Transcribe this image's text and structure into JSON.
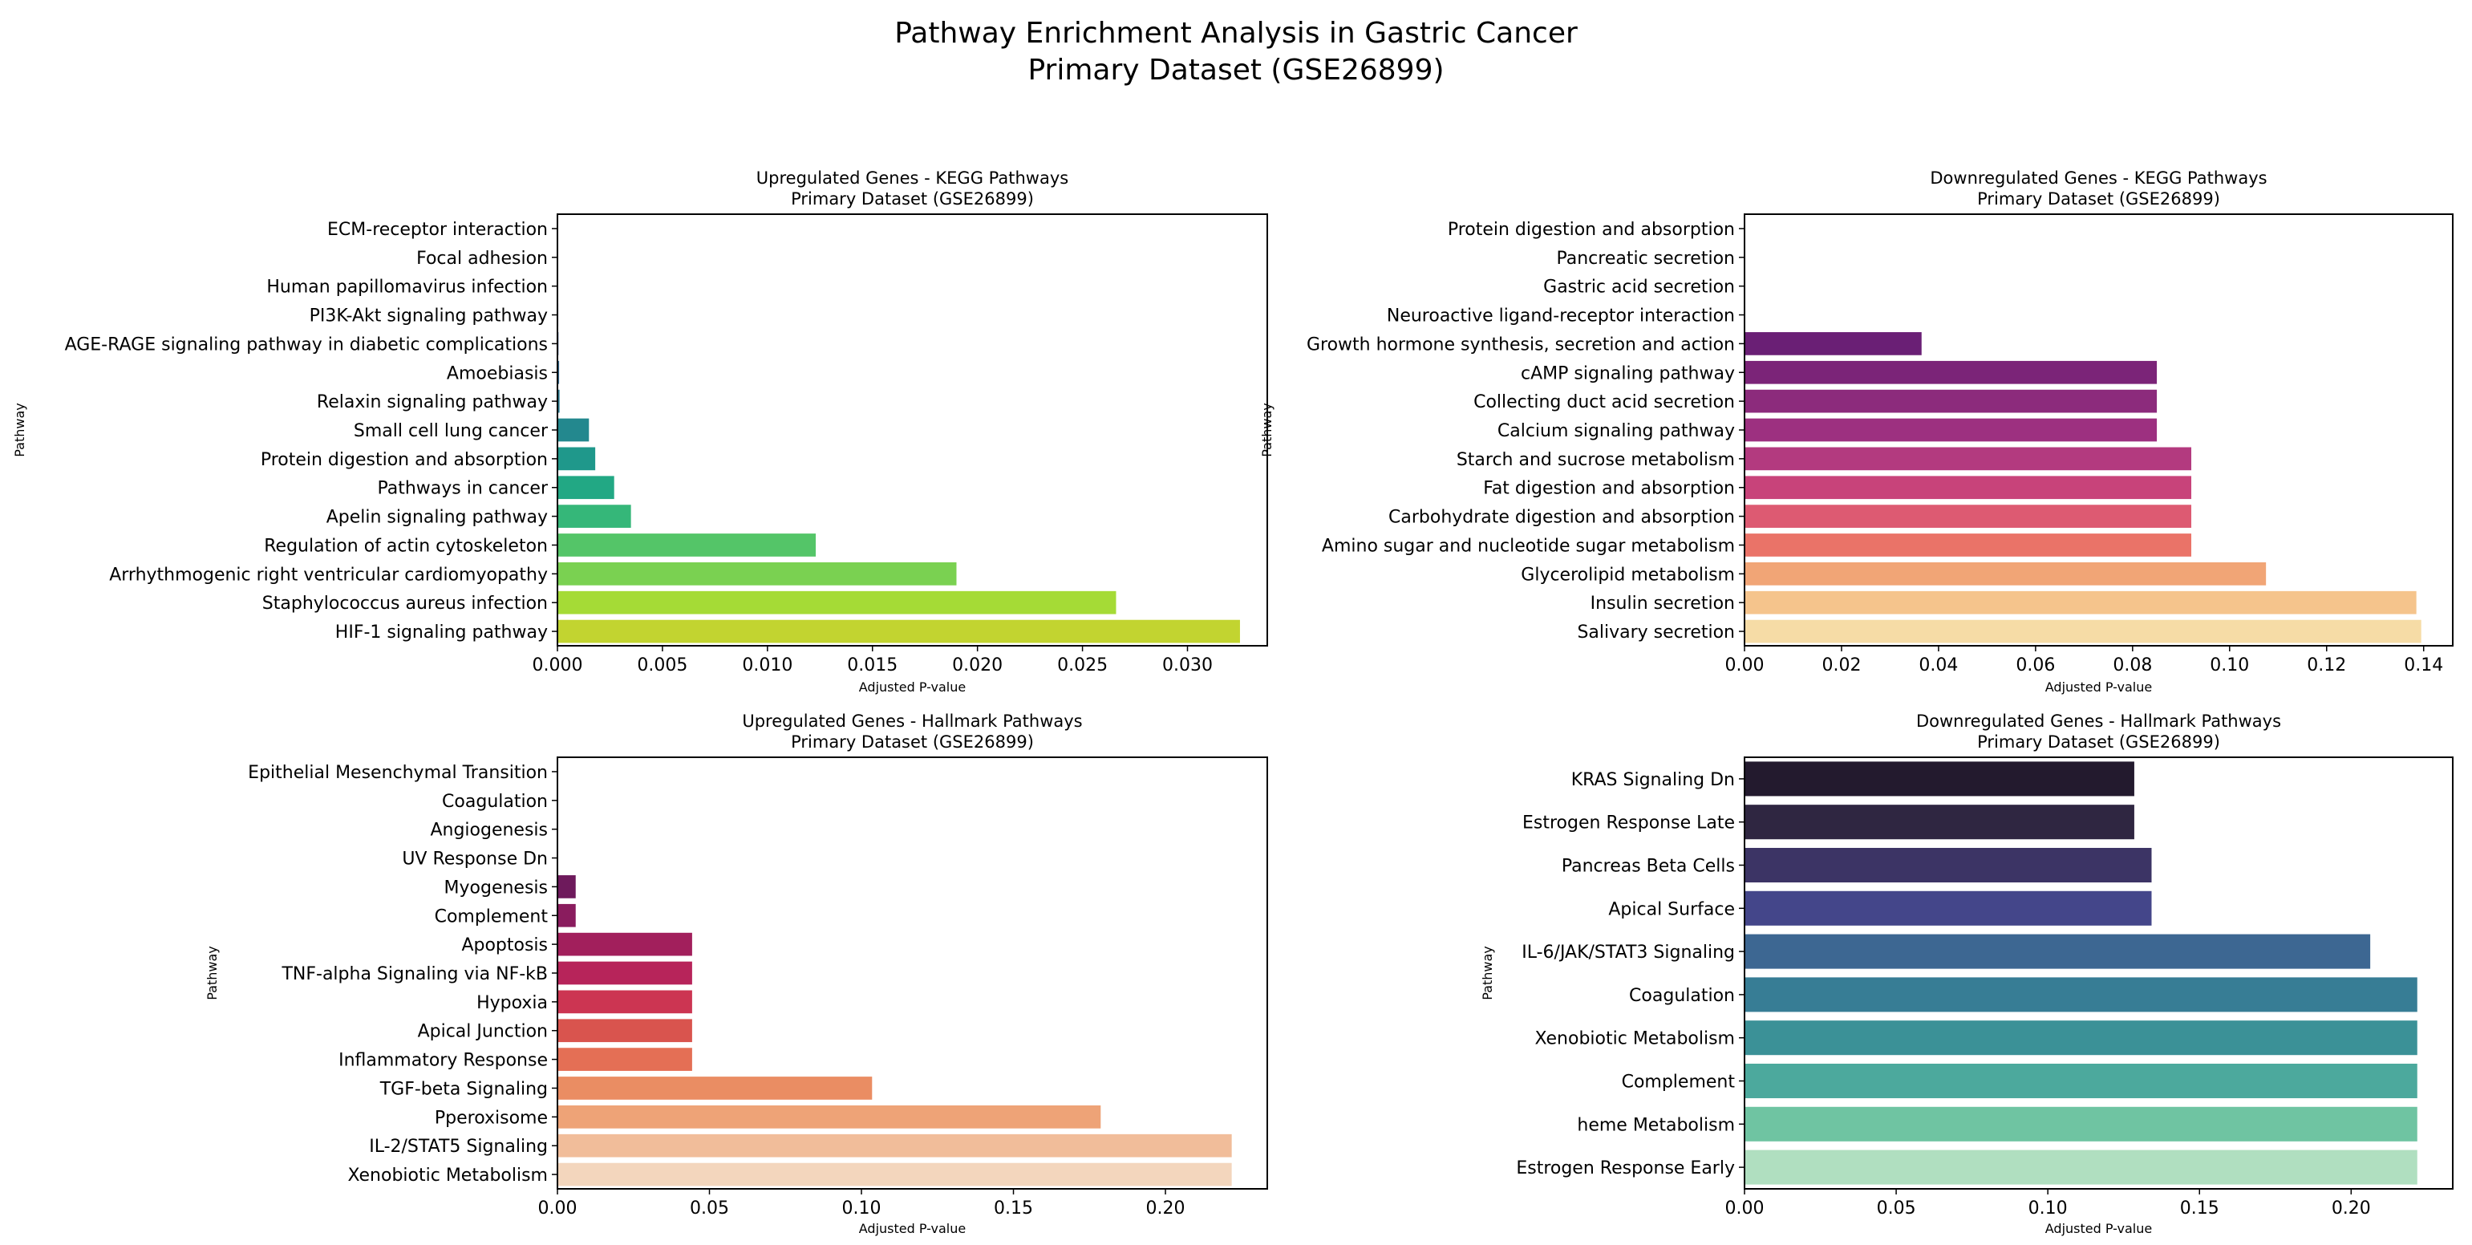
{
  "figure": {
    "title_line1": "Pathway Enrichment Analysis in Gastric Cancer",
    "title_line2": "Primary Dataset (GSE26899)"
  },
  "chart_data": [
    {
      "id": "up-kegg",
      "type": "bar",
      "orientation": "horizontal",
      "title_line1": "Upregulated Genes - KEGG Pathways",
      "title_line2": "Primary Dataset (GSE26899)",
      "xlabel": "Adjusted P-value",
      "ylabel": "Pathway",
      "xlim": [
        0,
        0.0338
      ],
      "xticks": [
        0.0,
        0.005,
        0.01,
        0.015,
        0.02,
        0.025,
        0.03
      ],
      "xtick_labels": [
        "0.000",
        "0.005",
        "0.010",
        "0.015",
        "0.020",
        "0.025",
        "0.030"
      ],
      "categories": [
        "ECM-receptor interaction",
        "Focal adhesion",
        "Human papillomavirus infection",
        "PI3K-Akt signaling pathway",
        "AGE-RAGE signaling pathway in diabetic complications",
        "Amoebiasis",
        "Relaxin signaling pathway",
        "Small cell lung cancer",
        "Protein digestion and absorption",
        "Pathways in cancer",
        "Apelin signaling pathway",
        "Regulation of actin cytoskeleton",
        "Arrhythmogenic right ventricular cardiomyopathy",
        "Staphylococcus aureus infection",
        "HIF-1 signaling pathway"
      ],
      "values": [
        1e-05,
        2e-05,
        3e-05,
        4e-05,
        5e-05,
        8e-05,
        0.0001,
        0.0015,
        0.0018,
        0.0027,
        0.0035,
        0.0123,
        0.019,
        0.0266,
        0.0325
      ],
      "colors": [
        "#3f1b5c",
        "#40236a",
        "#412d75",
        "#3e4989",
        "#38588c",
        "#31688e",
        "#2a788e",
        "#23888e",
        "#1f988b",
        "#22a884",
        "#35b779",
        "#54c568",
        "#7ad151",
        "#a5db36",
        "#c2d430"
      ]
    },
    {
      "id": "down-kegg",
      "type": "bar",
      "orientation": "horizontal",
      "title_line1": "Downregulated Genes - KEGG Pathways",
      "title_line2": "Primary Dataset (GSE26899)",
      "xlabel": "Adjusted P-value",
      "ylabel": "Pathway",
      "xlim": [
        0,
        0.146
      ],
      "xticks": [
        0.0,
        0.02,
        0.04,
        0.06,
        0.08,
        0.1,
        0.12,
        0.14
      ],
      "xtick_labels": [
        "0.00",
        "0.02",
        "0.04",
        "0.06",
        "0.08",
        "0.10",
        "0.12",
        "0.14"
      ],
      "categories": [
        "Protein digestion and absorption",
        "Pancreatic secretion",
        "Gastric acid secretion",
        "Neuroactive ligand-receptor interaction",
        "Growth hormone synthesis, secretion and action",
        "cAMP signaling pathway",
        "Collecting duct acid secretion",
        "Calcium signaling pathway",
        "Starch and sucrose metabolism",
        "Fat digestion and absorption",
        "Carbohydrate digestion and absorption",
        "Amino sugar and nucleotide sugar metabolism",
        "Glycerolipid metabolism",
        "Insulin secretion",
        "Salivary secretion"
      ],
      "values": [
        0.0,
        0.0,
        0.0,
        0.0,
        0.0365,
        0.085,
        0.085,
        0.085,
        0.0921,
        0.0921,
        0.0921,
        0.0921,
        0.1075,
        0.1385,
        0.1395
      ],
      "colors": [
        "#2a1a49",
        "#3a1f5b",
        "#4a1f68",
        "#5c1d70",
        "#6a1f75",
        "#7b2478",
        "#8c2b7c",
        "#9d3080",
        "#b33a7f",
        "#c8437a",
        "#dd5a72",
        "#ea7368",
        "#f1a576",
        "#f5c48c",
        "#f6dca6"
      ]
    },
    {
      "id": "up-hallmark",
      "type": "bar",
      "orientation": "horizontal",
      "title_line1": "Upregulated Genes - Hallmark Pathways",
      "title_line2": "Primary Dataset (GSE26899)",
      "xlabel": "Adjusted P-value",
      "ylabel": "Pathway",
      "xlim": [
        0,
        0.2335
      ],
      "xticks": [
        0.0,
        0.05,
        0.1,
        0.15,
        0.2
      ],
      "xtick_labels": [
        "0.00",
        "0.05",
        "0.10",
        "0.15",
        "0.20"
      ],
      "categories": [
        "Epithelial Mesenchymal Transition",
        "Coagulation",
        "Angiogenesis",
        "UV Response Dn",
        "Myogenesis",
        "Complement",
        "Apoptosis",
        "TNF-alpha Signaling via NF-kB",
        "Hypoxia",
        "Apical Junction",
        "Inflammatory Response",
        "TGF-beta Signaling",
        "Pperoxisome",
        "IL-2/STAT5 Signaling",
        "Xenobiotic Metabolism"
      ],
      "values": [
        0.0,
        0.0,
        0.0,
        0.0,
        0.006,
        0.006,
        0.0443,
        0.0443,
        0.0443,
        0.0443,
        0.0443,
        0.1035,
        0.1787,
        0.2218,
        0.2218
      ],
      "colors": [
        "#2d1545",
        "#3d1552",
        "#4d1a5c",
        "#5e1a62",
        "#6e1a5c",
        "#8a1c5e",
        "#a21f5c",
        "#b7245a",
        "#cc3552",
        "#d9544e",
        "#e46f55",
        "#ea8d63",
        "#eea377",
        "#f1bd9a",
        "#f3d6bd"
      ]
    },
    {
      "id": "down-hallmark",
      "type": "bar",
      "orientation": "horizontal",
      "title_line1": "Downregulated Genes - Hallmark Pathways",
      "title_line2": "Primary Dataset (GSE26899)",
      "xlabel": "Adjusted P-value",
      "ylabel": "Pathway",
      "xlim": [
        0,
        0.2335
      ],
      "xticks": [
        0.0,
        0.05,
        0.1,
        0.15,
        0.2
      ],
      "xtick_labels": [
        "0.00",
        "0.05",
        "0.10",
        "0.15",
        "0.20"
      ],
      "categories": [
        "KRAS Signaling Dn",
        "Estrogen Response Late",
        "Pancreas Beta Cells",
        "Apical Surface",
        "IL-6/JAK/STAT3 Signaling",
        "Coagulation",
        "Xenobiotic Metabolism",
        "Complement",
        "heme Metabolism",
        "Estrogen Response Early"
      ],
      "values": [
        0.1285,
        0.1285,
        0.1342,
        0.1342,
        0.2063,
        0.2218,
        0.2218,
        0.2218,
        0.2218,
        0.2218
      ],
      "colors": [
        "#231a2e",
        "#2f2641",
        "#3c3465",
        "#44468a",
        "#3d6792",
        "#377d95",
        "#3b9197",
        "#4ca99d",
        "#6fc4a2",
        "#b0dfc0"
      ]
    }
  ]
}
